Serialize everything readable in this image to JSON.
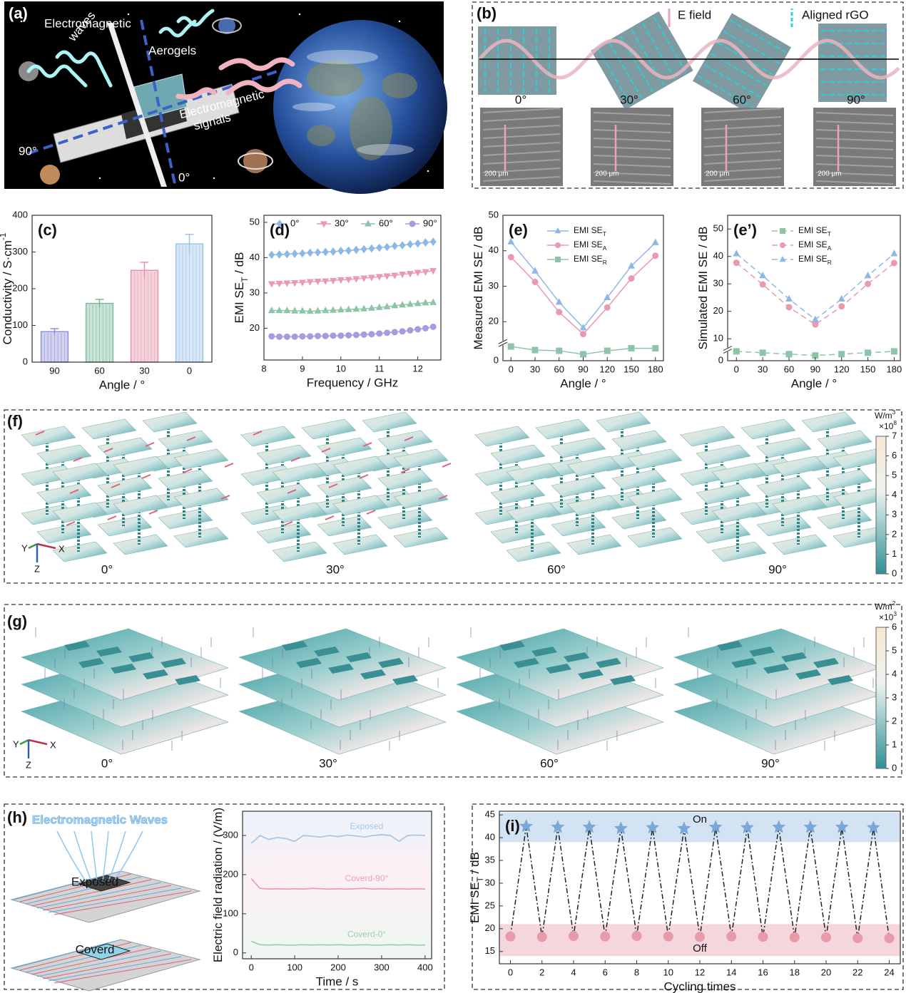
{
  "panels": {
    "a": {
      "label": "(a)",
      "waves_label": [
        "Electromagnetic",
        "waves"
      ],
      "aerogels_label": "Aerogels",
      "signals_label": [
        "Electromagnetic",
        "signals"
      ],
      "axis_90": "90°",
      "axis_0": "0°"
    },
    "b": {
      "label": "(b)",
      "e_field": "E field",
      "aligned": "Aligned rGO",
      "angles": [
        "0°",
        "30°",
        "60°",
        "90°"
      ],
      "scale_bars": [
        "200 μm",
        "200 μm",
        "200 μm",
        "200 μm"
      ]
    },
    "f": {
      "label": "(f)",
      "angles": [
        "0°",
        "30°",
        "60°",
        "90°"
      ],
      "axes": [
        "Y",
        "X",
        "Z"
      ],
      "colorbar": {
        "unit": [
          {
            "text": "W/m"
          },
          {
            "sup": "3"
          }
        ],
        "factor": [
          {
            "text": "×10"
          },
          {
            "sup": "8"
          }
        ],
        "lim": [
          0,
          7
        ],
        "ticks": [
          0,
          1,
          2,
          3,
          4,
          5,
          6,
          7
        ]
      }
    },
    "g": {
      "label": "(g)",
      "angles": [
        "0°",
        "30°",
        "60°",
        "90°"
      ],
      "axes": [
        "Y",
        "X",
        "Z"
      ],
      "colorbar": {
        "unit": [
          {
            "text": "W/m"
          },
          {
            "sup": "2"
          }
        ],
        "factor": [
          {
            "text": "×10"
          },
          {
            "sup": "3"
          }
        ],
        "lim": [
          0,
          6
        ],
        "ticks": [
          0,
          1,
          2,
          3,
          4,
          5,
          6
        ]
      }
    },
    "h": {
      "label": "(h)",
      "title": "Electromagnetic Waves",
      "exposed": "Exposed",
      "covered": "Coverd"
    }
  },
  "chart_data": [
    {
      "type": "bar",
      "panel": "(c)",
      "categories": [
        "90",
        "60",
        "30",
        "0"
      ],
      "values": [
        83,
        160,
        250,
        322
      ],
      "errors": [
        8,
        11,
        22,
        26
      ],
      "colors": [
        "#8e8fd6",
        "#79b99c",
        "#e493a8",
        "#9cc2e8"
      ],
      "ylim": [
        0,
        400
      ],
      "yticks": [
        0,
        100,
        200,
        300,
        400
      ],
      "xlabel": "Angle / °",
      "ylabel": [
        {
          "text": "Conductivity / S·cm"
        },
        {
          "sup": "-1"
        }
      ]
    },
    {
      "type": "line",
      "panel": "(d)",
      "legend": "top",
      "x": [
        8.2,
        8.4,
        8.6,
        8.8,
        9.0,
        9.2,
        9.4,
        9.6,
        9.8,
        10.0,
        10.2,
        10.4,
        10.6,
        10.8,
        11.0,
        11.2,
        11.4,
        11.6,
        11.8,
        12.0,
        12.2,
        12.4
      ],
      "series": [
        {
          "name": "0°",
          "color": "#8db8e6",
          "marker": "diamond",
          "values": [
            40.8,
            40.9,
            41.0,
            41.1,
            41.2,
            41.4,
            41.5,
            41.6,
            41.7,
            41.9,
            42.0,
            42.2,
            42.4,
            42.6,
            42.8,
            43.0,
            43.3,
            43.5,
            43.8,
            44.0,
            44.3,
            44.5
          ]
        },
        {
          "name": "30°",
          "color": "#e99ab0",
          "marker": "triangle-down",
          "values": [
            32.6,
            32.7,
            32.8,
            32.9,
            33.0,
            33.2,
            33.3,
            33.4,
            33.5,
            33.7,
            33.8,
            34.0,
            34.2,
            34.4,
            34.6,
            34.8,
            35.0,
            35.3,
            35.5,
            35.8,
            36.0,
            36.3
          ]
        },
        {
          "name": "60°",
          "color": "#8ec5a8",
          "marker": "triangle-up",
          "values": [
            25.0,
            25.0,
            25.0,
            24.9,
            24.9,
            24.8,
            24.9,
            25.0,
            25.1,
            25.2,
            25.3,
            25.4,
            25.5,
            25.7,
            25.9,
            26.1,
            26.4,
            26.6,
            26.8,
            27.0,
            27.2,
            27.3
          ]
        },
        {
          "name": "90°",
          "color": "#a99ae0",
          "marker": "circle",
          "values": [
            17.7,
            17.6,
            17.6,
            17.6,
            17.7,
            17.7,
            17.8,
            17.8,
            17.9,
            17.9,
            18.0,
            18.1,
            18.2,
            18.3,
            18.5,
            18.7,
            18.9,
            19.1,
            19.4,
            19.7,
            20.0,
            20.4
          ]
        }
      ],
      "xlim": [
        8,
        12.6
      ],
      "xticks": [
        8,
        9,
        10,
        11,
        12
      ],
      "ylim": [
        11,
        52
      ],
      "yticks": [
        20,
        30,
        40,
        50
      ],
      "xlabel": "Frequency / GHz",
      "ylabel": [
        {
          "text": "EMI SE"
        },
        {
          "sub": "T"
        },
        {
          "text": " / dB"
        }
      ]
    },
    {
      "type": "line",
      "panel": "(e)",
      "legend": "upper center",
      "x": [
        0,
        30,
        60,
        90,
        120,
        150,
        180
      ],
      "series": [
        {
          "name": "EMI SE",
          "name_sub": "T",
          "color": "#8db8e6",
          "marker": "triangle-up",
          "dash": "solid",
          "values": [
            42.5,
            34.3,
            25.5,
            18.3,
            26.8,
            35.7,
            42.3
          ]
        },
        {
          "name": "EMI SE",
          "name_sub": "A",
          "color": "#e99ab0",
          "marker": "circle",
          "dash": "solid",
          "values": [
            38.2,
            31.2,
            22.7,
            16.5,
            24.0,
            32.2,
            38.6
          ]
        },
        {
          "name": "EMI SE",
          "name_sub": "R",
          "color": "#8ec5a8",
          "marker": "square",
          "dash": "solid",
          "values": [
            4.0,
            3.0,
            2.8,
            1.8,
            2.8,
            3.5,
            3.5
          ]
        }
      ],
      "xlim": [
        -10,
        190
      ],
      "xticks": [
        0,
        30,
        60,
        90,
        120,
        150,
        180
      ],
      "ylim": [
        0,
        50
      ],
      "ybreak": [
        5,
        14
      ],
      "yticks": [
        0,
        20,
        30,
        40,
        50
      ],
      "xlabel": "Angle / °",
      "ylabel": [
        {
          "text": "Measured EMI SE / dB"
        }
      ]
    },
    {
      "type": "line",
      "panel": "(e’)",
      "legend": "upper center",
      "x": [
        0,
        30,
        60,
        90,
        120,
        150,
        180
      ],
      "series": [
        {
          "name": "EMI SE",
          "name_sub": "T",
          "color": "#8ec5a8",
          "marker": "square",
          "dash": "dashed",
          "values": [
            3.4,
            2.9,
            2.4,
            1.9,
            2.4,
            2.9,
            3.4
          ]
        },
        {
          "name": "EMI SE",
          "name_sub": "A",
          "color": "#e99ab0",
          "marker": "circle",
          "dash": "dashed",
          "values": [
            37.7,
            29.8,
            21.5,
            15.2,
            21.8,
            30.0,
            37.6
          ]
        },
        {
          "name": "EMI SE",
          "name_sub": "R",
          "color": "#8db8e6",
          "marker": "triangle-up",
          "dash": "dashed",
          "values": [
            41.0,
            33.0,
            24.5,
            17.0,
            24.5,
            33.0,
            41.0
          ]
        }
      ],
      "xlim": [
        -10,
        187
      ],
      "xticks": [
        0,
        30,
        60,
        90,
        120,
        150,
        180
      ],
      "ylim": [
        0,
        55
      ],
      "ybreak": [
        4,
        6
      ],
      "yticks": [
        0,
        10,
        20,
        30,
        40,
        50
      ],
      "xlabel": "Angle / °",
      "ylabel": [
        {
          "text": "Simulated EMI SE / dB"
        }
      ]
    },
    {
      "type": "line",
      "legend": "inline",
      "x": [
        0,
        20,
        40,
        60,
        80,
        100,
        120,
        140,
        160,
        180,
        200,
        220,
        240,
        260,
        280,
        300,
        320,
        340,
        360,
        380,
        400
      ],
      "series": [
        {
          "name": "Exposed",
          "color": "#a8c8e8",
          "values": [
            280,
            300,
            290,
            295,
            292,
            285,
            300,
            298,
            296,
            300,
            297,
            301,
            299,
            296,
            300,
            302,
            300,
            285,
            300,
            301,
            300
          ]
        },
        {
          "name": "Coverd-90°",
          "color": "#eaa0b4",
          "values": [
            190,
            165,
            163,
            164,
            163,
            164,
            163,
            165,
            164,
            163,
            164,
            163,
            164,
            165,
            163,
            164,
            163,
            164,
            163,
            164,
            163
          ]
        },
        {
          "name": "Coverd-0°",
          "color": "#9ccfb5",
          "values": [
            30,
            21,
            20,
            21,
            20,
            20,
            21,
            20,
            21,
            20,
            21,
            20,
            20,
            21,
            20,
            20,
            21,
            20,
            21,
            20,
            20
          ]
        }
      ],
      "xlim": [
        -20,
        415
      ],
      "xticks": [
        0,
        100,
        200,
        300,
        400
      ],
      "ylim": [
        -15,
        362
      ],
      "yticks": [
        0,
        100,
        200,
        300
      ],
      "xlabel": "Time / s",
      "ylabel": [
        {
          "text": "Electric field radiation / (V/m)"
        }
      ]
    },
    {
      "type": "line",
      "panel": "(i)",
      "x": [
        0,
        1,
        2,
        3,
        4,
        5,
        6,
        7,
        8,
        9,
        10,
        11,
        12,
        13,
        14,
        15,
        16,
        17,
        18,
        19,
        20,
        21,
        22,
        23,
        24
      ],
      "series": [
        {
          "color": "#222222",
          "dash": "dashdot",
          "values": [
            18.3,
            42.5,
            18.2,
            42.3,
            18.4,
            42.3,
            18.3,
            42.0,
            18.4,
            42.2,
            18.3,
            42.0,
            18.2,
            42.3,
            18.3,
            42.2,
            18.2,
            42.3,
            18.1,
            42.3,
            18.1,
            42.3,
            17.9,
            42.2,
            17.9
          ]
        }
      ],
      "bands": [
        {
          "label": "On",
          "from": 39,
          "to": 45.5,
          "color": "#d3e3f4",
          "marker": "star",
          "marker_color": "#7aa7d8"
        },
        {
          "label": "Off",
          "from": 14,
          "to": 21,
          "color": "#f6d6dd",
          "marker": "circle",
          "marker_color": "#e79aa8"
        }
      ],
      "xlim": [
        -0.7,
        24.7
      ],
      "xticks": [
        0,
        2,
        4,
        6,
        8,
        10,
        12,
        14,
        16,
        18,
        20,
        22,
        24
      ],
      "ylim": [
        12.3,
        45.8
      ],
      "yticks": [
        15,
        20,
        25,
        30,
        35,
        40,
        45
      ],
      "xlabel": "Cycling times",
      "ylabel": [
        {
          "text": "EMI SE"
        },
        {
          "sub": "T"
        },
        {
          "text": " / dB"
        }
      ]
    }
  ]
}
